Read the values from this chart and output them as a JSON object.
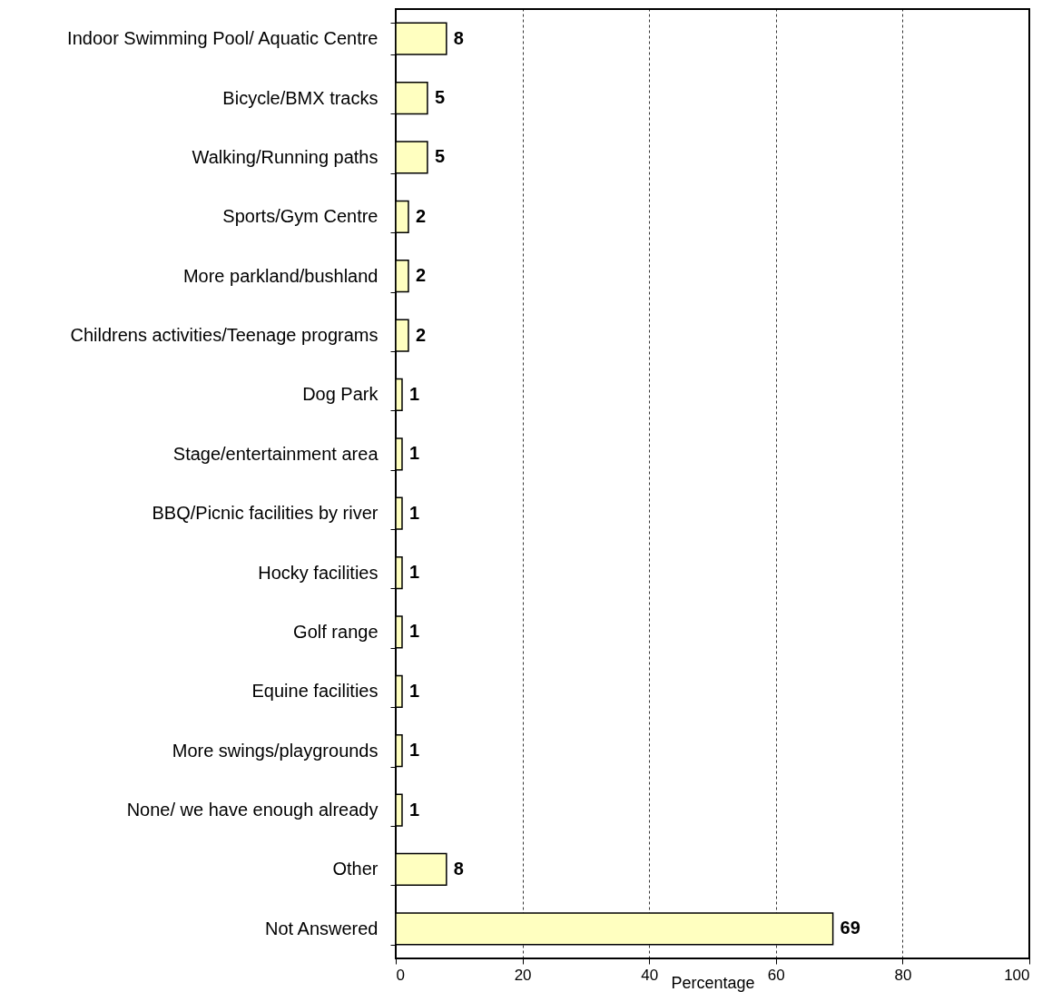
{
  "chart_data": {
    "type": "bar",
    "orientation": "horizontal",
    "xlabel": "Percentage",
    "categories": [
      "Indoor Swimming Pool/ Aquatic Centre",
      "Bicycle/BMX tracks",
      "Walking/Running paths",
      "Sports/Gym Centre",
      "More parkland/bushland",
      "Childrens activities/Teenage programs",
      "Dog Park",
      "Stage/entertainment area",
      "BBQ/Picnic facilities by river",
      "Hocky facilities",
      "Golf range",
      "Equine facilities",
      "More swings/playgrounds",
      "None/ we have enough already",
      "Other",
      "Not Answered"
    ],
    "values": [
      8,
      5,
      5,
      2,
      2,
      2,
      1,
      1,
      1,
      1,
      1,
      1,
      1,
      1,
      8,
      69
    ],
    "color": "#ffffc0",
    "xlim": [
      0,
      100
    ],
    "xticks": [
      0,
      20,
      40,
      60,
      80,
      100
    ],
    "grid": "x",
    "data_labels": true
  }
}
